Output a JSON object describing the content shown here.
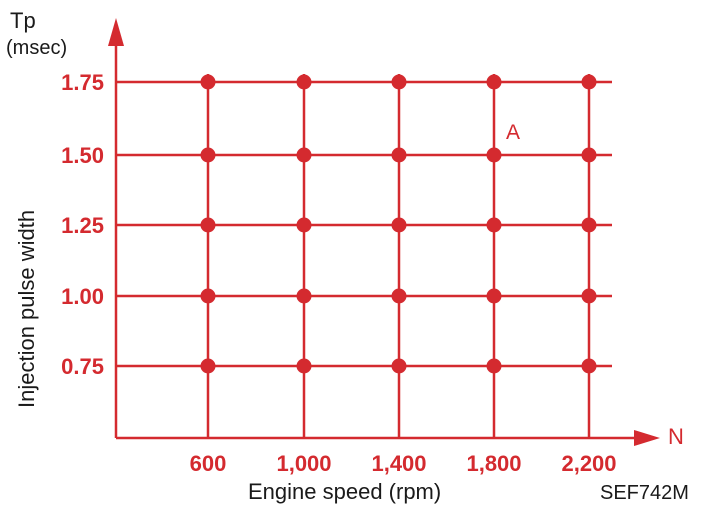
{
  "chart_data": {
    "type": "scatter",
    "title": "",
    "y_axis": {
      "symbol": "Tp",
      "unit": "(msec)",
      "label": "Injection pulse width",
      "ticks": [
        "0.75",
        "1.00",
        "1.25",
        "1.50",
        "1.75"
      ],
      "values": [
        0.75,
        1.0,
        1.25,
        1.5,
        1.75
      ]
    },
    "x_axis": {
      "symbol": "N",
      "label": "Engine speed (rpm)",
      "ticks": [
        "600",
        "1,000",
        "1,400",
        "1,800",
        "2,200"
      ],
      "values": [
        600,
        1000,
        1400,
        1800,
        2200
      ]
    },
    "grid": true,
    "points_note_free": true,
    "annotation": {
      "text": "A",
      "x": 1800,
      "y": 1.5
    },
    "figure_code": "SEF742M"
  },
  "colors": {
    "grid": "#d42a2f",
    "point": "#d42a2f",
    "text_red": "#d42a2f",
    "text_black": "#1a1a1a"
  }
}
